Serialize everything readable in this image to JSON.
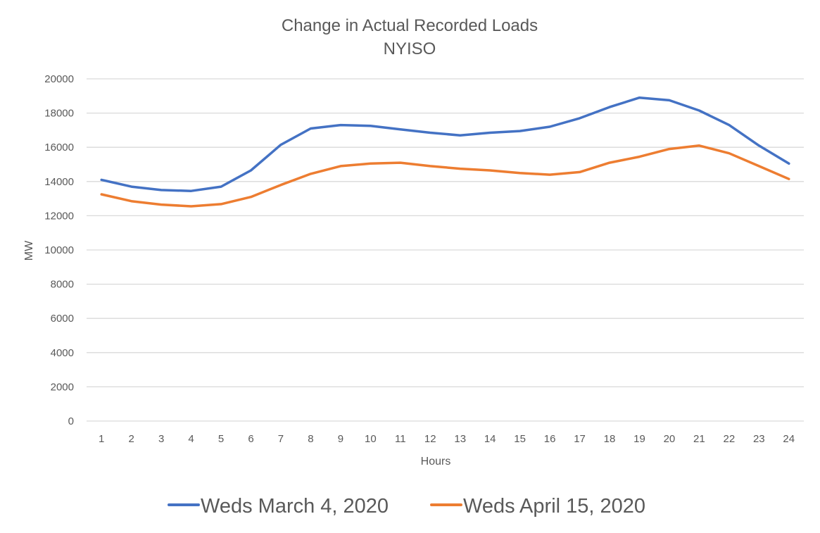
{
  "chart_data": {
    "type": "line",
    "title": "Change in Actual Recorded Loads",
    "subtitle": "NYISO",
    "xlabel": "Hours",
    "ylabel": "MW",
    "ylim": [
      0,
      20000
    ],
    "yticks": [
      0,
      2000,
      4000,
      6000,
      8000,
      10000,
      12000,
      14000,
      16000,
      18000,
      20000
    ],
    "grid": true,
    "legend_position": "bottom",
    "x": [
      1,
      2,
      3,
      4,
      5,
      6,
      7,
      8,
      9,
      10,
      11,
      12,
      13,
      14,
      15,
      16,
      17,
      18,
      19,
      20,
      21,
      22,
      23,
      24
    ],
    "series": [
      {
        "name": "Weds March 4, 2020",
        "color": "#4472C4",
        "values": [
          14100,
          13700,
          13500,
          13450,
          13700,
          14650,
          16150,
          17100,
          17300,
          17250,
          17050,
          16850,
          16700,
          16850,
          16950,
          17200,
          17700,
          18350,
          18900,
          18750,
          18150,
          17300,
          16100,
          15050
        ]
      },
      {
        "name": "Weds April 15, 2020",
        "color": "#ED7D31",
        "values": [
          13250,
          12850,
          12650,
          12550,
          12680,
          13100,
          13800,
          14450,
          14900,
          15050,
          15100,
          14900,
          14750,
          14650,
          14500,
          14400,
          14550,
          15100,
          15450,
          15900,
          16100,
          15650,
          14900,
          14150
        ]
      }
    ]
  }
}
